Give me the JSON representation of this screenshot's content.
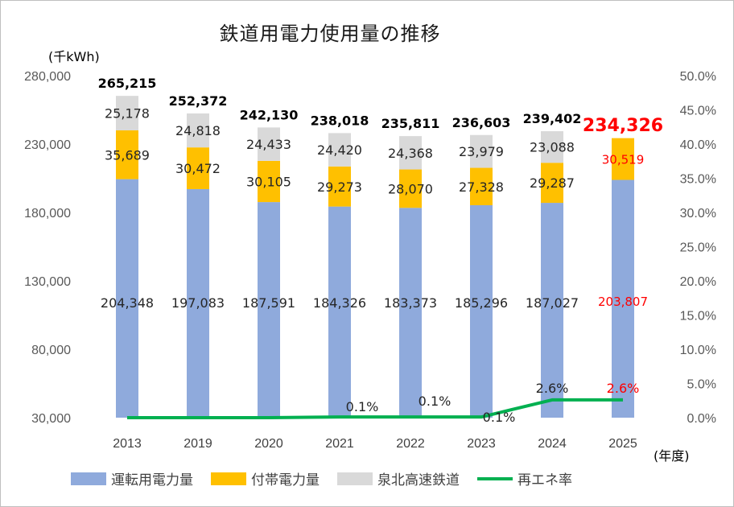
{
  "title": "鉄道用電力使用量の推移",
  "unit_left": "(千kWh)",
  "unit_right": "(年度)",
  "colors": {
    "運転用電力量": "#8faadc",
    "付帯電力量": "#ffc000",
    "泉北高速鉄道": "#d9d9d9",
    "再エネ率": "#00b050",
    "highlight": "#ff0000"
  },
  "chart_data": {
    "type": "bar",
    "stacked": true,
    "categories": [
      "2013",
      "2019",
      "2020",
      "2021",
      "2022",
      "2023",
      "2024",
      "2025"
    ],
    "series": [
      {
        "name": "運転用電力量",
        "values": [
          204348,
          197083,
          187591,
          184326,
          183373,
          185296,
          187027,
          203807
        ]
      },
      {
        "name": "付帯電力量",
        "values": [
          35689,
          30472,
          30105,
          29273,
          28070,
          27328,
          29287,
          30519
        ]
      },
      {
        "name": "泉北高速鉄道",
        "values": [
          25178,
          24818,
          24433,
          24420,
          24368,
          23979,
          23088,
          0
        ]
      }
    ],
    "line_series": {
      "name": "再エネ率",
      "axis": "right",
      "values": [
        0.0,
        0.0,
        0.0,
        0.1,
        0.1,
        0.1,
        2.6,
        2.6
      ]
    },
    "totals": [
      "265,215",
      "252,372",
      "242,130",
      "238,018",
      "235,811",
      "236,603",
      "239,402",
      "234,326"
    ],
    "labels": {
      "運転用電力量": [
        "204,348",
        "197,083",
        "187,591",
        "184,326",
        "183,373",
        "185,296",
        "187,027",
        "203,807"
      ],
      "付帯電力量": [
        "35,689",
        "30,472",
        "30,105",
        "29,273",
        "28,070",
        "27,328",
        "29,287",
        "30,519"
      ],
      "泉北高速鉄道": [
        "25,178",
        "24,818",
        "24,433",
        "24,420",
        "24,368",
        "23,979",
        "23,088",
        ""
      ],
      "再エネ率": [
        "",
        "",
        "",
        "0.1%",
        "0.1%",
        "0.1%",
        "2.6%",
        "2.6%"
      ]
    },
    "ylim": [
      30000,
      280000
    ],
    "yticks": [
      "30,000",
      "80,000",
      "130,000",
      "180,000",
      "230,000",
      "280,000"
    ],
    "y2lim": [
      0,
      50
    ],
    "y2ticks": [
      "0.0%",
      "5.0%",
      "10.0%",
      "15.0%",
      "20.0%",
      "25.0%",
      "30.0%",
      "35.0%",
      "40.0%",
      "45.0%",
      "50.0%"
    ],
    "highlight_category": "2025",
    "grid": false,
    "legend_position": "bottom"
  },
  "legend": [
    "運転用電力量",
    "付帯電力量",
    "泉北高速鉄道",
    "再エネ率"
  ]
}
